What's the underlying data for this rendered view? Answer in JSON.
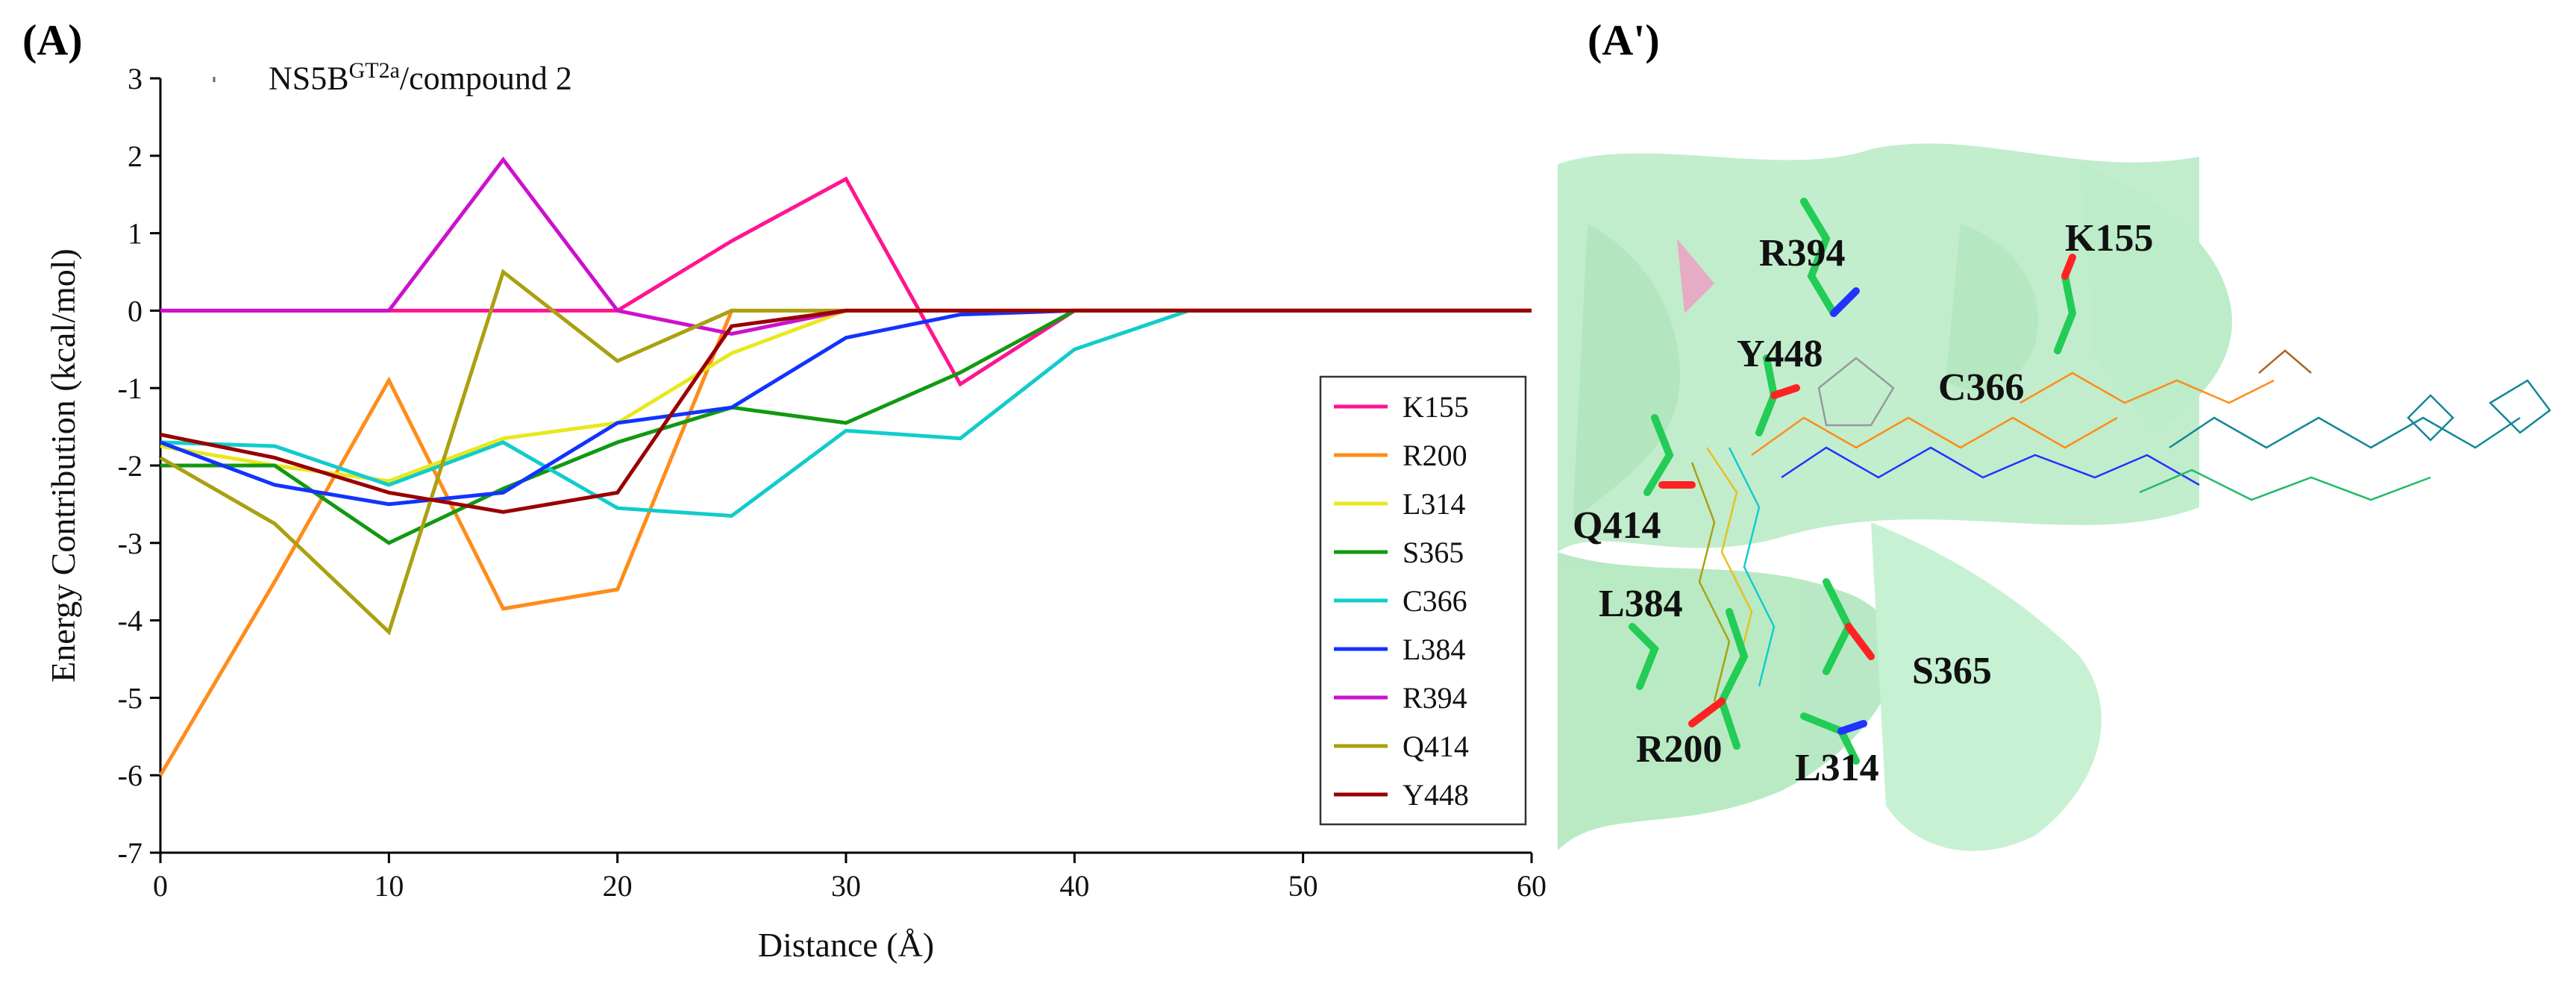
{
  "panel_labels": {
    "left": "(A)",
    "right": "(A')"
  },
  "title": {
    "main": "NS5B",
    "sup": "GT2a",
    "suffix": "/compound 2"
  },
  "colors": {
    "K155": "#ff1493",
    "R200": "#ff8c1a",
    "L314": "#e8e81e",
    "S365": "#119911",
    "C366": "#11cccc",
    "L384": "#1133ff",
    "R394": "#cc11cc",
    "Q414": "#aaa011",
    "Y448": "#990000",
    "protein": "#7fdc98",
    "stick_green": "#22cc55",
    "stick_red": "#ff2222",
    "stick_blue": "#2233ff"
  },
  "chart_data": {
    "type": "line",
    "title": "NS5BGT2a/compound 2",
    "xlabel": "Distance (Å)",
    "ylabel": "Energy Contribution (kcal/mol)",
    "xlim": [
      0,
      60
    ],
    "ylim": [
      -7,
      3
    ],
    "xticks": [
      "0",
      "10",
      "20",
      "30",
      "40",
      "50",
      "60"
    ],
    "yticks": [
      "3",
      "2",
      "1",
      "0",
      "-1",
      "-2",
      "-3",
      "-4",
      "-5",
      "-6",
      "-7"
    ],
    "legend_position": "right-middle",
    "series": [
      {
        "name": "K155",
        "x": [
          0,
          5,
          10,
          15,
          20,
          25,
          30,
          35,
          40,
          45,
          50,
          55,
          60
        ],
        "values": [
          0,
          0,
          0,
          0,
          0,
          0.9,
          1.7,
          -0.95,
          0,
          0,
          0,
          0,
          0
        ]
      },
      {
        "name": "R200",
        "x": [
          0,
          5,
          10,
          15,
          20,
          25,
          30,
          35,
          40,
          45,
          50,
          55,
          60
        ],
        "values": [
          -6.0,
          -3.5,
          -0.9,
          -3.85,
          -3.6,
          0,
          0,
          0,
          0,
          0,
          0,
          0,
          0
        ]
      },
      {
        "name": "L314",
        "x": [
          0,
          5,
          10,
          15,
          20,
          25,
          30,
          35,
          40,
          45,
          50,
          55,
          60
        ],
        "values": [
          -1.75,
          -2.0,
          -2.2,
          -1.65,
          -1.45,
          -0.55,
          0,
          0,
          0,
          0,
          0,
          0,
          0
        ]
      },
      {
        "name": "S365",
        "x": [
          0,
          5,
          10,
          15,
          20,
          25,
          30,
          35,
          40,
          45,
          50,
          55,
          60
        ],
        "values": [
          -2.0,
          -2.0,
          -3.0,
          -2.3,
          -1.7,
          -1.25,
          -1.45,
          -0.8,
          0,
          0,
          0,
          0,
          0
        ]
      },
      {
        "name": "C366",
        "x": [
          0,
          5,
          10,
          15,
          20,
          25,
          30,
          35,
          40,
          45,
          50,
          55,
          60
        ],
        "values": [
          -1.7,
          -1.75,
          -2.25,
          -1.7,
          -2.55,
          -2.65,
          -1.55,
          -1.65,
          -0.5,
          0,
          0,
          0,
          0
        ]
      },
      {
        "name": "L384",
        "x": [
          0,
          5,
          10,
          15,
          20,
          25,
          30,
          35,
          40,
          45,
          50,
          55,
          60
        ],
        "values": [
          -1.7,
          -2.25,
          -2.5,
          -2.35,
          -1.45,
          -1.25,
          -0.35,
          -0.05,
          0,
          0,
          0,
          0,
          0
        ]
      },
      {
        "name": "R394",
        "x": [
          0,
          5,
          10,
          15,
          20,
          25,
          30,
          35,
          40,
          45,
          50,
          55,
          60
        ],
        "values": [
          0,
          0,
          0,
          1.95,
          0,
          -0.3,
          0,
          0,
          0,
          0,
          0,
          0,
          0
        ]
      },
      {
        "name": "Q414",
        "x": [
          0,
          5,
          10,
          15,
          20,
          25,
          30,
          35,
          40,
          45,
          50,
          55,
          60
        ],
        "values": [
          -1.9,
          -2.75,
          -4.15,
          0.5,
          -0.65,
          0,
          0,
          0,
          0,
          0,
          0,
          0,
          0
        ]
      },
      {
        "name": "Y448",
        "x": [
          0,
          5,
          10,
          15,
          20,
          25,
          30,
          35,
          40,
          45,
          50,
          55,
          60
        ],
        "values": [
          -1.6,
          -1.9,
          -2.35,
          -2.6,
          -2.35,
          -0.2,
          0,
          0,
          0,
          0,
          0,
          0,
          0
        ]
      }
    ]
  },
  "molecule_labels": [
    "R394",
    "K155",
    "Y448",
    "C366",
    "Q414",
    "L384",
    "S365",
    "R200",
    "L314"
  ]
}
